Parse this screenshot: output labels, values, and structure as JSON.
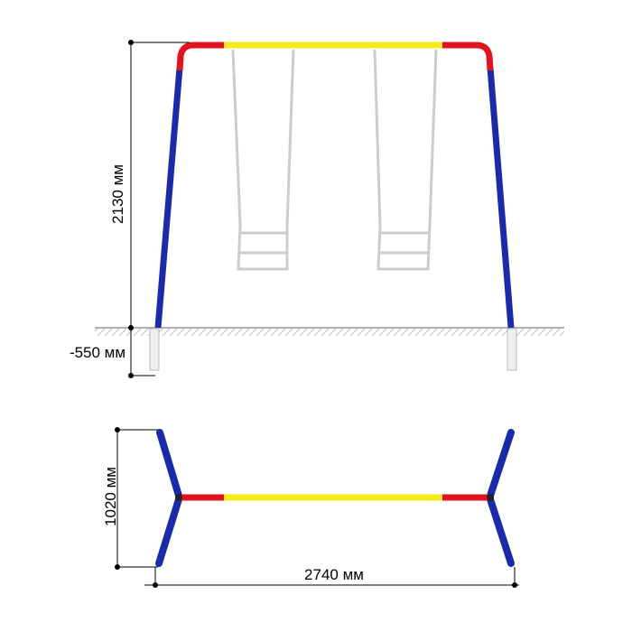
{
  "front_view": {
    "height_label": "2130 мм",
    "depth_label": "-550 мм"
  },
  "top_view": {
    "depth_label": "1020 мм",
    "width_label": "2740 мм"
  }
}
